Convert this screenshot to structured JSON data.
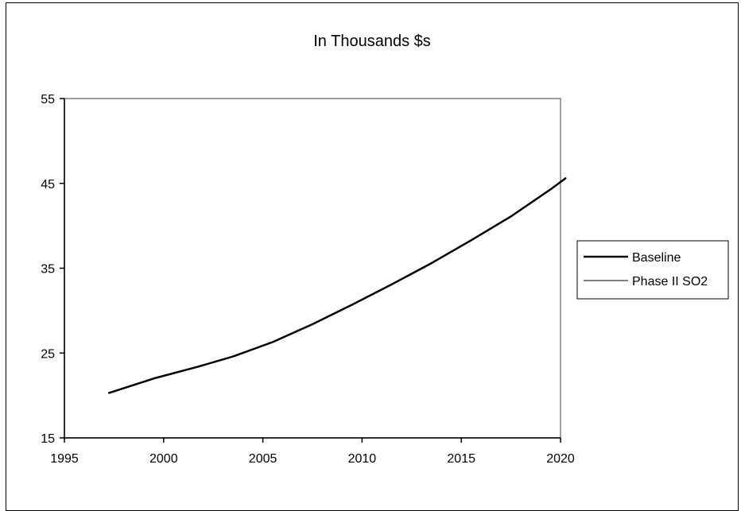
{
  "chart_data": {
    "type": "line",
    "title": "In Thousands $s",
    "xlabel": "",
    "ylabel": "",
    "xlim": [
      1995,
      2020
    ],
    "ylim": [
      15,
      55
    ],
    "x_ticks": [
      "1995",
      "2000",
      "2005",
      "2010",
      "2015",
      "2020"
    ],
    "y_ticks": [
      "15",
      "25",
      "35",
      "45",
      "55"
    ],
    "grid": false,
    "legend_position": "right",
    "series": [
      {
        "name": "Baseline",
        "color": "#000000",
        "x": [
          1997.25,
          1999.5,
          2001.75,
          2003.5,
          2005.5,
          2007.5,
          2009.5,
          2011.5,
          2013.5,
          2015.5,
          2017.5,
          2019.5,
          2020.25
        ],
        "y": [
          20.3,
          22.0,
          23.4,
          24.6,
          26.3,
          28.4,
          30.7,
          33.1,
          35.6,
          38.3,
          41.1,
          44.3,
          45.6
        ]
      },
      {
        "name": "Phase II SO2",
        "color": "#000000",
        "x": [
          1997.25,
          1999.5,
          2001.75,
          2003.5,
          2005.5,
          2007.5,
          2009.5,
          2011.5,
          2013.5,
          2015.5,
          2017.5,
          2019.5,
          2020.25
        ],
        "y": [
          20.3,
          22.0,
          23.4,
          24.6,
          26.3,
          28.4,
          30.7,
          33.1,
          35.6,
          38.3,
          41.1,
          44.3,
          45.6
        ]
      }
    ]
  }
}
